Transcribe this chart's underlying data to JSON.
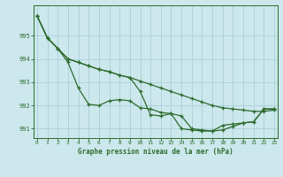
{
  "title": "Graphe pression niveau de la mer (hPa)",
  "bg_color": "#cce8ec",
  "grid_color": "#aad0d8",
  "line_color": "#2d6b2d",
  "ylim": [
    990.6,
    996.3
  ],
  "xlim": [
    -0.3,
    23.3
  ],
  "yticks": [
    991,
    992,
    993,
    994,
    995
  ],
  "xticks": [
    0,
    1,
    2,
    3,
    4,
    5,
    6,
    7,
    8,
    9,
    10,
    11,
    12,
    13,
    14,
    15,
    16,
    17,
    18,
    19,
    20,
    21,
    22,
    23
  ],
  "line1": [
    995.85,
    994.9,
    994.45,
    994.0,
    993.85,
    993.7,
    993.55,
    993.45,
    993.3,
    993.2,
    993.05,
    992.9,
    992.75,
    992.6,
    992.45,
    992.3,
    992.15,
    992.0,
    991.9,
    991.85,
    991.8,
    991.75,
    991.75,
    991.8
  ],
  "line2": [
    995.85,
    994.9,
    994.45,
    994.0,
    993.85,
    993.7,
    993.55,
    993.45,
    993.3,
    993.2,
    992.6,
    991.6,
    991.55,
    991.65,
    991.0,
    990.95,
    990.9,
    990.9,
    991.15,
    991.2,
    991.25,
    991.3,
    991.85,
    991.85
  ],
  "line3": [
    995.85,
    994.9,
    994.45,
    993.85,
    992.75,
    992.05,
    992.0,
    992.2,
    992.25,
    992.2,
    991.9,
    991.85,
    991.7,
    991.65,
    991.55,
    991.0,
    990.95,
    990.9,
    990.95,
    991.1,
    991.25,
    991.3,
    991.85,
    991.85
  ],
  "marker_size": 3.0,
  "linewidth": 0.9
}
